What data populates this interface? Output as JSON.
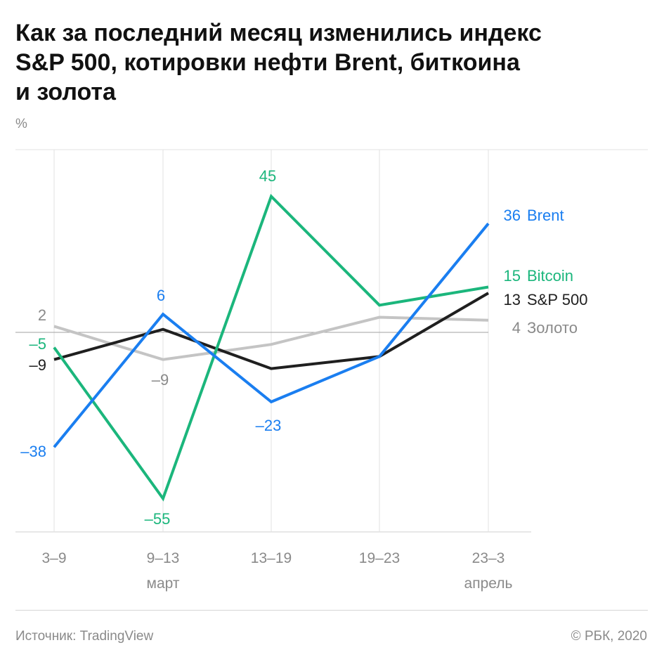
{
  "title_lines": [
    "Как за последний месяц изменились индекс",
    "S&P 500, котировки нефти Brent, биткоина",
    "и золота"
  ],
  "footer": {
    "source": "Источник: TradingView",
    "copyright": "© РБК, 2020"
  },
  "chart_data": {
    "type": "line",
    "ylabel": "%",
    "ylim": [
      -60,
      50
    ],
    "grid": true,
    "legend": "right",
    "categories": [
      "3–9",
      "9–13",
      "13–19",
      "19–23",
      "23–3"
    ],
    "month_labels": [
      {
        "category": "9–13",
        "label": "март"
      },
      {
        "category": "23–3",
        "label": "апрель"
      }
    ],
    "series": [
      {
        "name": "Золото",
        "value_label": "4",
        "color": "#c4c4c4",
        "values": [
          2,
          -9,
          -4,
          5,
          4
        ],
        "data_labels": {
          "0": "2",
          "1": "–9"
        }
      },
      {
        "name": "S&P 500",
        "value_label": "13",
        "color": "#1f1f1f",
        "values": [
          -9,
          1,
          -12,
          -8,
          13
        ],
        "data_labels": {
          "0": "–9"
        }
      },
      {
        "name": "Bitcoin",
        "value_label": "15",
        "color": "#1bb67c",
        "values": [
          -5,
          -55,
          45,
          9,
          15
        ],
        "data_labels": {
          "0": "–5",
          "1": "–55",
          "2": "45"
        }
      },
      {
        "name": "Brent",
        "value_label": "36",
        "color": "#1a7ef0",
        "values": [
          -38,
          6,
          -23,
          -8,
          36
        ],
        "data_labels": {
          "0": "–38",
          "1": "6",
          "2": "–23"
        }
      }
    ]
  }
}
